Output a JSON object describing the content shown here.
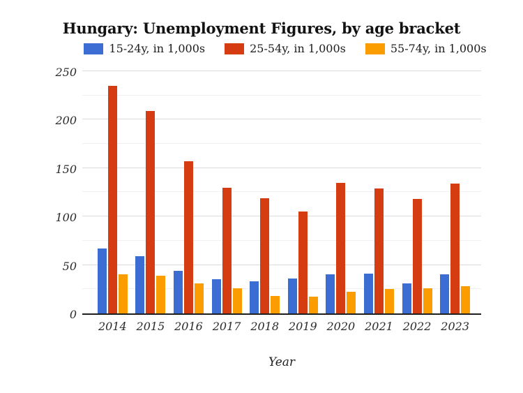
{
  "chart_data": {
    "type": "bar",
    "title": "Hungary: Unemployment Figures, by age bracket",
    "xlabel": "Year",
    "ylabel": "",
    "categories": [
      "2014",
      "2015",
      "2016",
      "2017",
      "2018",
      "2019",
      "2020",
      "2021",
      "2022",
      "2023"
    ],
    "series": [
      {
        "id": "15-24y",
        "name": "15-24y, in 1,000s",
        "color": "#3B6DD3",
        "values": [
          67,
          59,
          44,
          35,
          33,
          36,
          40,
          41,
          31,
          40
        ]
      },
      {
        "id": "25-54y",
        "name": "25-54y, in 1,000s",
        "color": "#D63C12",
        "values": [
          235,
          209,
          157,
          130,
          119,
          105,
          135,
          129,
          118,
          134
        ]
      },
      {
        "id": "55-74y",
        "name": "55-74y, in 1,000s",
        "color": "#FB9D00",
        "values": [
          40,
          39,
          31,
          26,
          18,
          17,
          22,
          25,
          26,
          28
        ]
      }
    ],
    "ylim": [
      0,
      250
    ],
    "yticks": [
      0,
      50,
      100,
      150,
      200,
      250
    ],
    "minor_tick_step": 25,
    "grid": true,
    "legend_position": "top",
    "axis_color": "#1F1F1F",
    "grid_major_color": "#DBDBDB",
    "grid_minor_color": "#F1F1F1",
    "background_color": "#FFFFFF"
  }
}
